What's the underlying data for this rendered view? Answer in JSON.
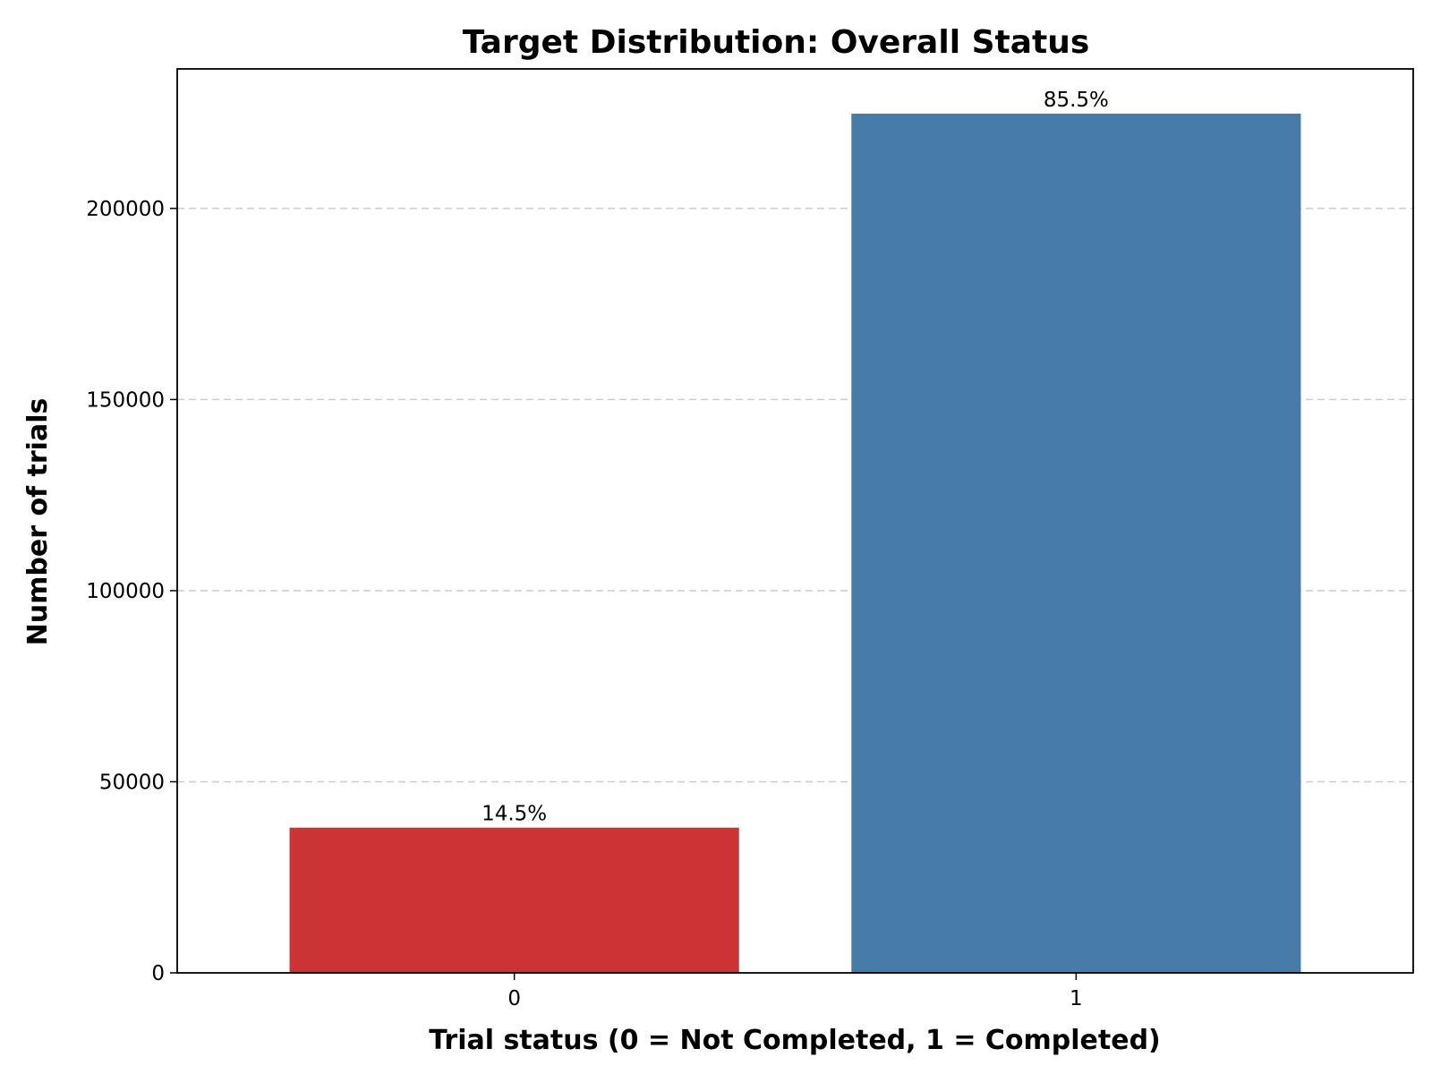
{
  "chart_data": {
    "type": "bar",
    "title": "Target Distribution: Overall Status",
    "xlabel": "Trial status (0 = Not Completed, 1 = Completed)",
    "ylabel": "Number of trials",
    "categories": [
      "0",
      "1"
    ],
    "values": [
      38000,
      224800
    ],
    "data_labels": [
      "14.5%",
      "85.5%"
    ],
    "colors": [
      "#cb3335",
      "#477ca8"
    ],
    "ylim": [
      0,
      236500
    ],
    "yticks": [
      0,
      50000,
      100000,
      150000,
      200000
    ],
    "ytick_labels": [
      "0",
      "50000",
      "100000",
      "150000",
      "200000"
    ],
    "grid": "y-dashed",
    "legend": "none"
  }
}
